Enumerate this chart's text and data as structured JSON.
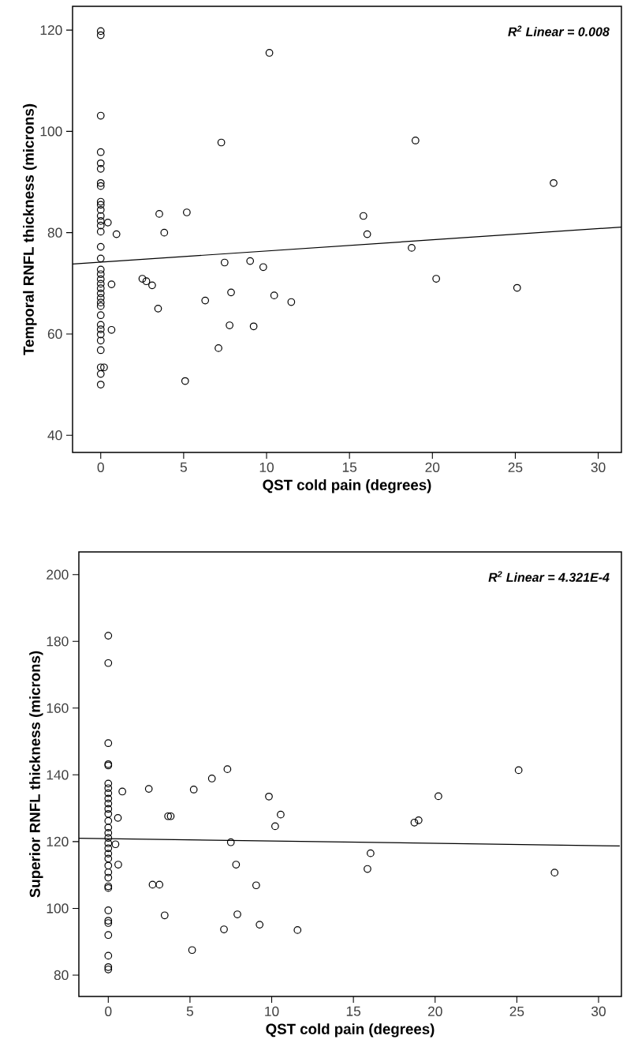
{
  "chart_data": [
    {
      "type": "scatter",
      "xlabel": "QST cold pain (degrees)",
      "ylabel": "Temporal RNFL thickness (microns)",
      "annotations": [
        "R$^{2}$ Linear = 0.008"
      ],
      "marker": "circle",
      "xlim": [
        -1.7,
        31.4
      ],
      "ylim": [
        36.6,
        124.7
      ],
      "xticks": [
        0,
        5,
        10,
        15,
        20,
        25,
        30
      ],
      "yticks": [
        40,
        60,
        80,
        100,
        120
      ],
      "series": [
        {
          "color": "#000000",
          "x": [
            0,
            0,
            0,
            0,
            0,
            0,
            0,
            0,
            0,
            0,
            0,
            0,
            0,
            0,
            0,
            0,
            0,
            0,
            0,
            0,
            0,
            0,
            0,
            0,
            0,
            0,
            0,
            0,
            0,
            0,
            0,
            0,
            0,
            0,
            0,
            0.43,
            0.65,
            0.65,
            0.95,
            0.2,
            3.53,
            5.19,
            3.83,
            2.51,
            2.75,
            3.1,
            3.46,
            5.09,
            6.3,
            7.27,
            7.47,
            7.86,
            7.77,
            7.1,
            10.17,
            9.01,
            9.8,
            9.22,
            10.46,
            11.49,
            15.84,
            16.07,
            18.98,
            18.75,
            20.23,
            25.11,
            27.31
          ],
          "values": [
            119.8,
            119,
            103.1,
            95.9,
            93.7,
            92.6,
            89.8,
            89.2,
            86.1,
            85.5,
            84.5,
            83.3,
            82.3,
            81.4,
            80.2,
            77.2,
            74.9,
            72.7,
            71.8,
            70.8,
            69.9,
            69,
            68,
            67.1,
            66.2,
            65.5,
            63.7,
            61.8,
            60.9,
            59.9,
            58.7,
            56.8,
            53.4,
            52.1,
            50,
            82,
            69.8,
            60.8,
            79.7,
            53.4,
            83.7,
            84,
            80,
            70.9,
            70.4,
            69.6,
            65,
            50.7,
            66.6,
            97.8,
            74.1,
            68.2,
            61.7,
            57.2,
            115.5,
            74.4,
            73.2,
            61.5,
            67.6,
            66.3,
            83.3,
            79.7,
            98.2,
            77,
            70.9,
            69.1,
            89.8
          ]
        },
        {
          "type": "line",
          "color": "#000000",
          "marker": "none",
          "x": [
            -1.7,
            31.4
          ],
          "values": [
            73.8,
            81.1
          ]
        }
      ]
    },
    {
      "type": "scatter",
      "xlabel": "QST cold pain (degrees)",
      "ylabel": "Superior RNFL thickness (microns)",
      "annotations": [
        "R$^{2}$ Linear = 4.321E-4"
      ],
      "marker": "circle",
      "xlim": [
        -1.8,
        31.4
      ],
      "ylim": [
        73.6,
        206.8
      ],
      "xticks": [
        0,
        5,
        10,
        15,
        20,
        25,
        30
      ],
      "yticks": [
        80,
        100,
        120,
        140,
        160,
        180,
        200
      ],
      "series": [
        {
          "color": "#000000",
          "x": [
            0,
            0,
            0,
            0,
            0,
            0,
            0,
            0,
            0,
            0,
            0,
            0,
            0,
            0,
            0,
            0,
            0,
            0,
            0,
            0,
            0,
            0,
            0,
            0,
            0,
            0,
            0,
            0,
            0,
            0,
            0,
            0,
            0.86,
            0.59,
            0.44,
            0.61,
            2.48,
            3.66,
            3.82,
            2.71,
            3.13,
            3.45,
            5.23,
            5.13,
            6.34,
            7.29,
            7.5,
            7.82,
            7.08,
            7.9,
            9.05,
            9.26,
            9.83,
            10.55,
            10.21,
            11.58,
            16.05,
            15.86,
            18.73,
            18.99,
            20.2,
            25.11,
            27.31
          ],
          "values": [
            181.7,
            173.5,
            149.5,
            143.2,
            142.8,
            137.4,
            136,
            134.5,
            132.9,
            131.4,
            129.8,
            128.3,
            126.2,
            124.2,
            122.6,
            121.1,
            119.5,
            118,
            116.4,
            114.9,
            112.8,
            110.8,
            109.2,
            106.6,
            106.1,
            99.4,
            96.3,
            95.6,
            92,
            85.8,
            82.4,
            81.7,
            135,
            127.1,
            119.2,
            113.1,
            135.8,
            127.6,
            127.6,
            107.1,
            107.1,
            97.9,
            135.6,
            87.5,
            138.9,
            141.7,
            119.8,
            113.1,
            93.7,
            98.2,
            106.9,
            95.1,
            133.5,
            128.1,
            124.6,
            93.5,
            116.5,
            111.8,
            125.7,
            126.4,
            133.6,
            141.4,
            110.7
          ]
        },
        {
          "type": "line",
          "color": "#000000",
          "marker": "none",
          "x": [
            -1.8,
            31.3
          ],
          "values": [
            121,
            118.7
          ]
        }
      ]
    }
  ]
}
